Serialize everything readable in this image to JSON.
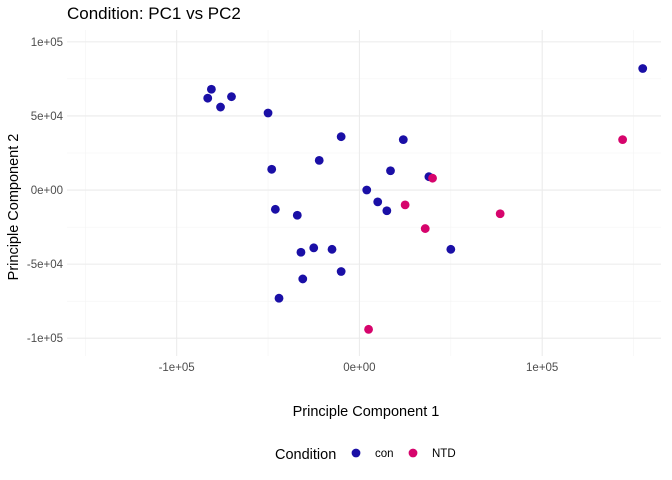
{
  "chart_data": {
    "type": "scatter",
    "title": "Condition: PC1 vs PC2",
    "xlabel": "Principle Component 1",
    "ylabel": "Principle Component 2",
    "xlim": [
      -160000,
      165000
    ],
    "ylim": [
      -112000,
      108000
    ],
    "x_ticks": [
      -100000,
      0,
      100000
    ],
    "x_tick_labels": [
      "-1e+05",
      "0e+00",
      "1e+05"
    ],
    "y_ticks": [
      -100000,
      -50000,
      0,
      50000,
      100000
    ],
    "y_tick_labels": [
      "-1e+05",
      "-5e+04",
      "0e+00",
      "5e+04",
      "1e+05"
    ],
    "grid": true,
    "legend": {
      "title": "Condition",
      "position": "bottom"
    },
    "series": [
      {
        "name": "con",
        "color": "#1a0fa6",
        "points": [
          [
            -81000,
            68000
          ],
          [
            -83000,
            62000
          ],
          [
            -76000,
            56000
          ],
          [
            -70000,
            63000
          ],
          [
            -50000,
            52000
          ],
          [
            -48000,
            14000
          ],
          [
            -46000,
            -13000
          ],
          [
            -34000,
            -17000
          ],
          [
            -22000,
            20000
          ],
          [
            -10000,
            36000
          ],
          [
            -32000,
            -42000
          ],
          [
            -25000,
            -39000
          ],
          [
            -15000,
            -40000
          ],
          [
            -10000,
            -55000
          ],
          [
            -31000,
            -60000
          ],
          [
            -44000,
            -73000
          ],
          [
            4000,
            0
          ],
          [
            10000,
            -8000
          ],
          [
            15000,
            -14000
          ],
          [
            17000,
            13000
          ],
          [
            24000,
            34000
          ],
          [
            38000,
            9000
          ],
          [
            50000,
            -40000
          ],
          [
            155000,
            82000
          ]
        ]
      },
      {
        "name": "NTD",
        "color": "#d6046c",
        "points": [
          [
            40000,
            8000
          ],
          [
            25000,
            -10000
          ],
          [
            36000,
            -26000
          ],
          [
            77000,
            -16000
          ],
          [
            144000,
            34000
          ],
          [
            5000,
            -94000
          ]
        ]
      }
    ]
  }
}
